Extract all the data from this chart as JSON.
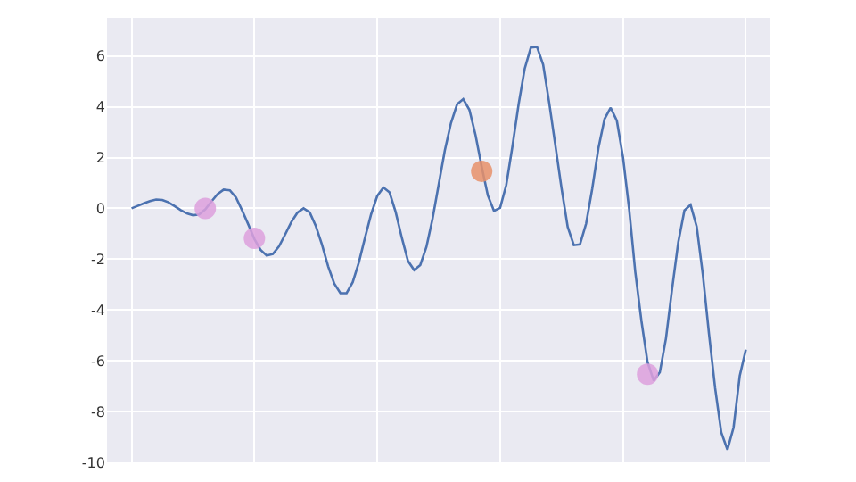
{
  "chart_data": {
    "type": "line",
    "categories": [
      null,
      null,
      null,
      null,
      null,
      null,
      null,
      null,
      null,
      null,
      null,
      null,
      null,
      null,
      null,
      null,
      null,
      null,
      null,
      null,
      null,
      null,
      null,
      null,
      null,
      null,
      null,
      null,
      null,
      null,
      null,
      null,
      null,
      null,
      null,
      null,
      null,
      null,
      null,
      null,
      null,
      null,
      null,
      null,
      null,
      null,
      null,
      null,
      null,
      null,
      null,
      null,
      null,
      null,
      null,
      null,
      null,
      null,
      null,
      null,
      null,
      null,
      null,
      null,
      null,
      null,
      null,
      null,
      null,
      null,
      null,
      null,
      null,
      null,
      null,
      null,
      null,
      null,
      null,
      null,
      null,
      null,
      null,
      null,
      null,
      null,
      null,
      null,
      null,
      null,
      null,
      null,
      null,
      null,
      null,
      null,
      null,
      null,
      null,
      null,
      null
    ],
    "ylim": [
      -10,
      7.5
    ],
    "yticks": [
      -10,
      -8,
      -6,
      -4,
      -2,
      0,
      2,
      4,
      6
    ],
    "grid": true,
    "series": [
      {
        "color": "#4c72b0",
        "values": [
          0,
          0.1,
          0.2,
          0.29,
          0.35,
          0.33,
          0.24,
          0.09,
          -0.07,
          -0.2,
          -0.27,
          -0.24,
          -0.04,
          0.27,
          0.56,
          0.74,
          0.71,
          0.43,
          -0.08,
          -0.63,
          -1.21,
          -1.63,
          -1.86,
          -1.8,
          -1.5,
          -1.03,
          -0.54,
          -0.17,
          0,
          -0.16,
          -0.7,
          -1.43,
          -2.28,
          -2.96,
          -3.34,
          -3.34,
          -2.91,
          -2.13,
          -1.16,
          -0.23,
          0.49,
          0.82,
          0.63,
          -0.15,
          -1.16,
          -2.07,
          -2.43,
          -2.23,
          -1.52,
          -0.41,
          0.94,
          2.28,
          3.36,
          4.1,
          4.3,
          3.88,
          2.88,
          1.64,
          0.51,
          -0.1,
          0.02,
          0.92,
          2.43,
          4.08,
          5.5,
          6.33,
          6.36,
          5.66,
          4.14,
          2.47,
          0.79,
          -0.73,
          -1.45,
          -1.42,
          -0.6,
          0.78,
          2.37,
          3.52,
          3.96,
          3.45,
          2.02,
          -0.02,
          -2.5,
          -4.43,
          -6.05,
          -6.78,
          -6.45,
          -5.12,
          -3.16,
          -1.34,
          -0.08,
          0.14,
          -0.72,
          -2.61,
          -4.94,
          -7.08,
          -8.82,
          -9.5,
          -8.63,
          -6.6,
          -5.56
        ]
      },
      {
        "type": "scatter",
        "color": "#dda0dd",
        "values": [
          null,
          null,
          null,
          null,
          null,
          null,
          null,
          null,
          null,
          null,
          null,
          null,
          0.0,
          null,
          null,
          null,
          null,
          null,
          null,
          null,
          -1.18,
          null,
          null,
          null,
          null,
          null,
          null,
          null,
          null,
          null,
          null,
          null,
          null,
          null,
          null,
          null,
          null,
          null,
          null,
          null,
          null,
          null,
          null,
          null,
          null,
          null,
          null,
          null,
          null,
          null,
          null,
          null,
          null,
          null,
          null,
          null,
          null,
          null,
          null,
          null,
          null,
          null,
          null,
          null,
          null,
          null,
          null,
          null,
          null,
          null,
          null,
          null,
          null,
          null,
          null,
          null,
          null,
          null,
          null,
          null,
          null,
          null,
          null,
          null,
          -6.53,
          null,
          null,
          null,
          null,
          null,
          null,
          null,
          null,
          null,
          null,
          null,
          null,
          null,
          null,
          null,
          null
        ]
      },
      {
        "type": "scatter",
        "color": "#e8906a",
        "values": [
          null,
          null,
          null,
          null,
          null,
          null,
          null,
          null,
          null,
          null,
          null,
          null,
          null,
          null,
          null,
          null,
          null,
          null,
          null,
          null,
          null,
          null,
          null,
          null,
          null,
          null,
          null,
          null,
          null,
          null,
          null,
          null,
          null,
          null,
          null,
          null,
          null,
          null,
          null,
          null,
          null,
          null,
          null,
          null,
          null,
          null,
          null,
          null,
          null,
          null,
          null,
          null,
          null,
          null,
          null,
          null,
          null,
          1.46,
          null,
          null,
          null,
          null,
          null,
          null,
          null,
          null,
          null,
          null,
          null,
          null,
          null,
          null,
          null,
          null,
          null,
          null,
          null,
          null,
          null,
          null,
          null,
          null,
          null,
          null,
          null,
          null,
          null,
          null,
          null,
          null,
          null,
          null,
          null,
          null,
          null,
          null,
          null,
          null,
          null,
          null,
          null
        ]
      }
    ]
  }
}
